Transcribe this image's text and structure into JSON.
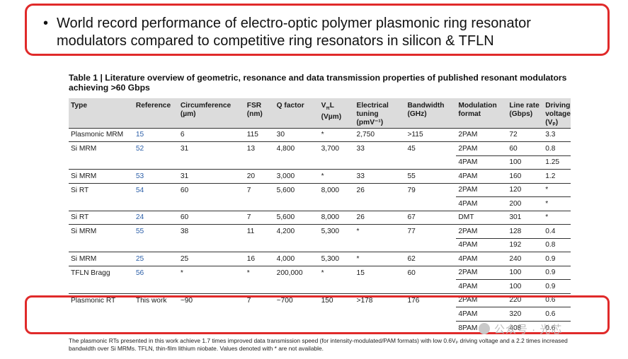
{
  "slide": {
    "bullet": "•",
    "headline": "World record performance of electro-optic polymer plasmonic ring resonator modulators compared to competitive ring resonators in silicon & TFLN"
  },
  "table": {
    "caption": "Table 1 | Literature overview of geometric, resonance and data transmission properties of published resonant modulators achieving >60 Gbps",
    "headers": {
      "type": "Type",
      "reference": "Reference",
      "circ": "Circumference",
      "circ_unit": "(µm)",
      "fsr": "FSR",
      "fsr_unit": "(nm)",
      "q": "Q factor",
      "vpl_a": "V",
      "vpl_sub": "π",
      "vpl_b": "L",
      "vpl_unit": "(Vµm)",
      "tuning": "Electrical",
      "tuning2": "tuning",
      "tuning_unit": "(pmV⁻¹)",
      "bw": "Bandwidth",
      "bw_unit": "(GHz)",
      "mod": "Modulation",
      "mod2": "format",
      "rate": "Line rate",
      "rate_unit": "(Gbps)",
      "drive": "Driving",
      "drive2": "voltage",
      "drive_unit": "(Vₚ)"
    },
    "rows": [
      {
        "type": "Plasmonic MRM",
        "ref": "15",
        "circ": "6",
        "fsr": "115",
        "q": "30",
        "vpl": "*",
        "tuning": "2,750",
        "bw": ">115",
        "mod": "2PAM",
        "rate": "72",
        "drive": "3.3"
      },
      {
        "type": "Si MRM",
        "ref": "52",
        "circ": "31",
        "fsr": "13",
        "q": "4,800",
        "vpl": "3,700",
        "tuning": "33",
        "bw": "45",
        "mod": "2PAM",
        "rate": "60",
        "drive": "0.8"
      },
      {
        "type": "",
        "ref": "",
        "circ": "",
        "fsr": "",
        "q": "",
        "vpl": "",
        "tuning": "",
        "bw": "",
        "mod": "4PAM",
        "rate": "100",
        "drive": "1.25"
      },
      {
        "type": "Si MRM",
        "ref": "53",
        "circ": "31",
        "fsr": "20",
        "q": "3,000",
        "vpl": "*",
        "tuning": "33",
        "bw": "55",
        "mod": "4PAM",
        "rate": "160",
        "drive": "1.2"
      },
      {
        "type": "Si RT",
        "ref": "54",
        "circ": "60",
        "fsr": "7",
        "q": "5,600",
        "vpl": "8,000",
        "tuning": "26",
        "bw": "79",
        "mod": "2PAM",
        "rate": "120",
        "drive": "*"
      },
      {
        "type": "",
        "ref": "",
        "circ": "",
        "fsr": "",
        "q": "",
        "vpl": "",
        "tuning": "",
        "bw": "",
        "mod": "4PAM",
        "rate": "200",
        "drive": "*"
      },
      {
        "type": "Si RT",
        "ref": "24",
        "circ": "60",
        "fsr": "7",
        "q": "5,600",
        "vpl": "8,000",
        "tuning": "26",
        "bw": "67",
        "mod": "DMT",
        "rate": "301",
        "drive": "*"
      },
      {
        "type": "Si MRM",
        "ref": "55",
        "circ": "38",
        "fsr": "11",
        "q": "4,200",
        "vpl": "5,300",
        "tuning": "*",
        "bw": "77",
        "mod": "2PAM",
        "rate": "128",
        "drive": "0.4"
      },
      {
        "type": "",
        "ref": "",
        "circ": "",
        "fsr": "",
        "q": "",
        "vpl": "",
        "tuning": "",
        "bw": "",
        "mod": "4PAM",
        "rate": "192",
        "drive": "0.8"
      },
      {
        "type": "Si MRM",
        "ref": "25",
        "circ": "25",
        "fsr": "16",
        "q": "4,000",
        "vpl": "5,300",
        "tuning": "*",
        "bw": "62",
        "mod": "4PAM",
        "rate": "240",
        "drive": "0.9"
      },
      {
        "type": "TFLN Bragg",
        "ref": "56",
        "circ": "*",
        "fsr": "*",
        "q": "200,000",
        "vpl": "*",
        "tuning": "15",
        "bw": "60",
        "mod": "2PAM",
        "rate": "100",
        "drive": "0.9"
      },
      {
        "type": "",
        "ref": "",
        "circ": "",
        "fsr": "",
        "q": "",
        "vpl": "",
        "tuning": "",
        "bw": "",
        "mod": "4PAM",
        "rate": "100",
        "drive": "0.9"
      },
      {
        "type": "Plasmonic RT",
        "ref": "This work",
        "circ": "~90",
        "fsr": "7",
        "q": "~700",
        "vpl": "150",
        "tuning": ">178",
        "bw": "176",
        "mod": "2PAM",
        "rate": "220",
        "drive": "0.6"
      },
      {
        "type": "",
        "ref": "",
        "circ": "",
        "fsr": "",
        "q": "",
        "vpl": "",
        "tuning": "",
        "bw": "",
        "mod": "4PAM",
        "rate": "320",
        "drive": "0.6"
      },
      {
        "type": "",
        "ref": "",
        "circ": "",
        "fsr": "",
        "q": "",
        "vpl": "",
        "tuning": "",
        "bw": "",
        "mod": "8PAM",
        "rate": "408",
        "drive": "0.6"
      }
    ],
    "footnote": "The plasmonic RTs presented in this work achieve 1.7 times improved data transmission speed (for intensity-modulated/PAM formats) with low 0.6Vₚ driving voltage and a 2.2 times increased bandwidth over Si MRMs. TFLN, thin-film lithium niobate. Values denoted with * are not available."
  },
  "watermark": {
    "text": "公众号 · 光芯"
  },
  "colors": {
    "highlight": "#e02a2a",
    "header_bg": "#dcdcdc",
    "reference_link": "#2c5fa8"
  }
}
